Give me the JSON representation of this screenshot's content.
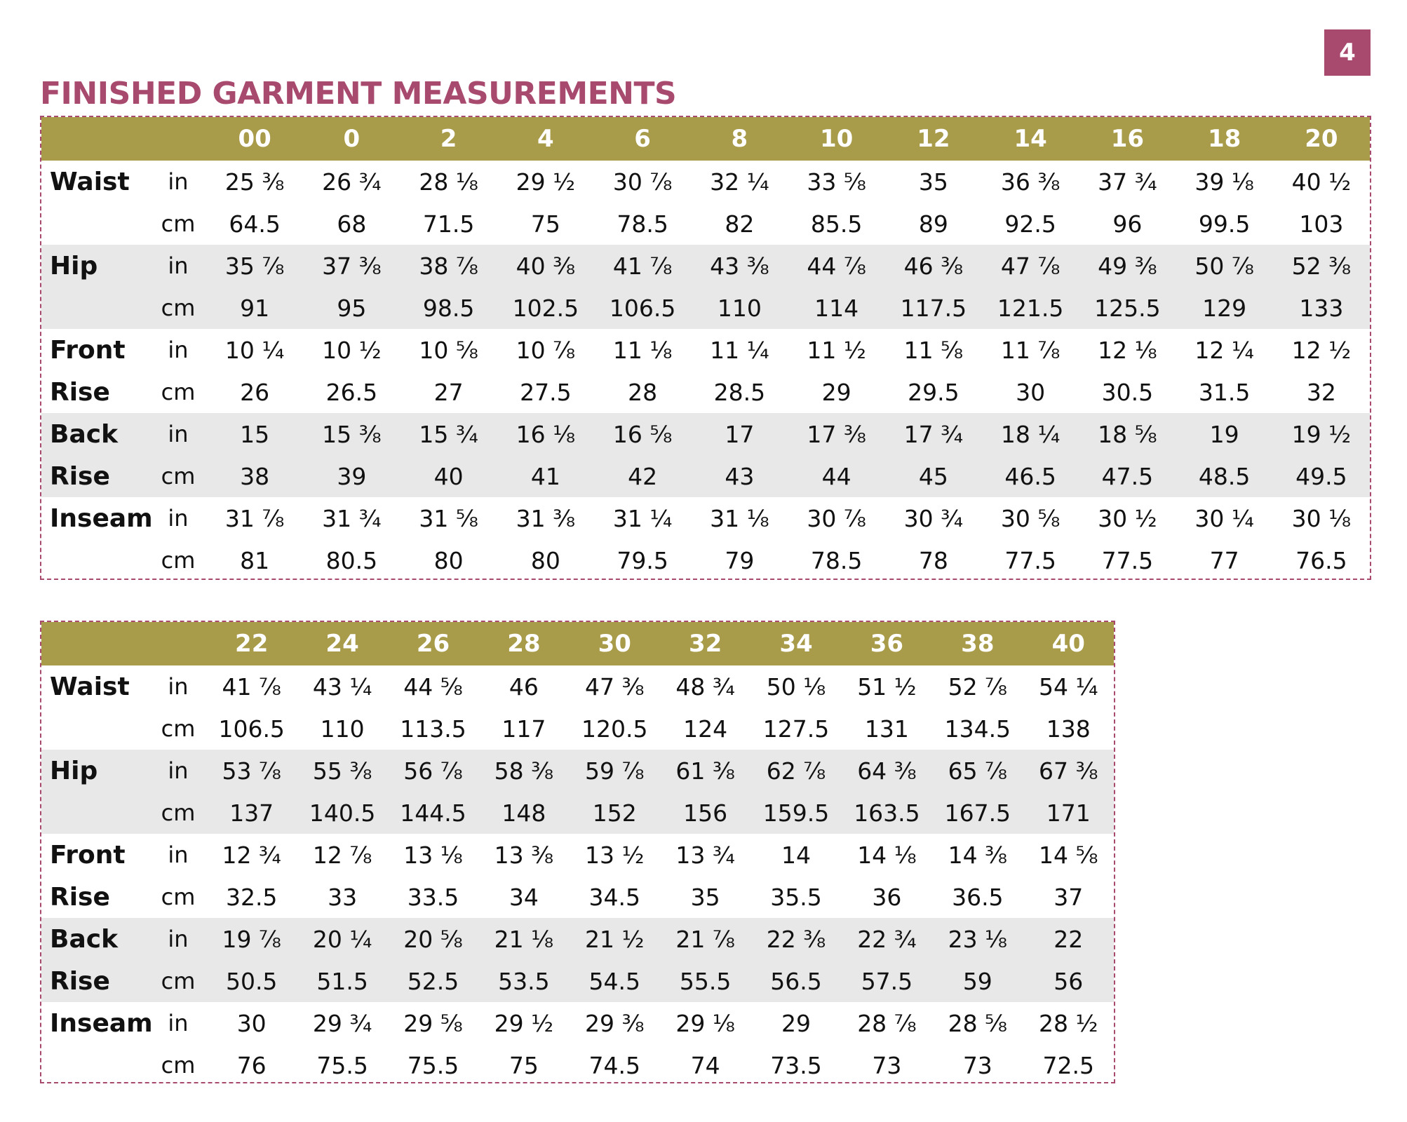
{
  "page_number": "4",
  "title": "FINISHED GARMENT MEASUREMENTS",
  "colors": {
    "accent": "#a84a6e",
    "header_bg": "#a89b4a",
    "row_shade": "#e8e8e8"
  },
  "tables": [
    {
      "sizes": [
        "00",
        "0",
        "2",
        "4",
        "6",
        "8",
        "10",
        "12",
        "14",
        "16",
        "18",
        "20"
      ],
      "rows": [
        {
          "label": "Waist",
          "unit": "in",
          "values": [
            "25 ⅜",
            "26 ¾",
            "28 ⅛",
            "29 ½",
            "30 ⅞",
            "32 ¼",
            "33 ⅝",
            "35",
            "36 ⅜",
            "37 ¾",
            "39 ⅛",
            "40 ½"
          ]
        },
        {
          "label": "",
          "unit": "cm",
          "values": [
            "64.5",
            "68",
            "71.5",
            "75",
            "78.5",
            "82",
            "85.5",
            "89",
            "92.5",
            "96",
            "99.5",
            "103"
          ]
        },
        {
          "label": "Hip",
          "unit": "in",
          "values": [
            "35 ⅞",
            "37 ⅜",
            "38 ⅞",
            "40 ⅜",
            "41 ⅞",
            "43 ⅜",
            "44 ⅞",
            "46 ⅜",
            "47 ⅞",
            "49 ⅜",
            "50 ⅞",
            "52 ⅜"
          ]
        },
        {
          "label": "",
          "unit": "cm",
          "values": [
            "91",
            "95",
            "98.5",
            "102.5",
            "106.5",
            "110",
            "114",
            "117.5",
            "121.5",
            "125.5",
            "129",
            "133"
          ]
        },
        {
          "label": "Front",
          "unit": "in",
          "values": [
            "10 ¼",
            "10 ½",
            "10 ⅝",
            "10 ⅞",
            "11 ⅛",
            "11 ¼",
            "11 ½",
            "11 ⅝",
            "11 ⅞",
            "12 ⅛",
            "12 ¼",
            "12 ½"
          ]
        },
        {
          "label": "Rise",
          "unit": "cm",
          "values": [
            "26",
            "26.5",
            "27",
            "27.5",
            "28",
            "28.5",
            "29",
            "29.5",
            "30",
            "30.5",
            "31.5",
            "32"
          ]
        },
        {
          "label": "Back",
          "unit": "in",
          "values": [
            "15",
            "15 ⅜",
            "15 ¾",
            "16 ⅛",
            "16 ⅝",
            "17",
            "17 ⅜",
            "17 ¾",
            "18 ¼",
            "18 ⅝",
            "19",
            "19 ½"
          ]
        },
        {
          "label": "Rise",
          "unit": "cm",
          "values": [
            "38",
            "39",
            "40",
            "41",
            "42",
            "43",
            "44",
            "45",
            "46.5",
            "47.5",
            "48.5",
            "49.5"
          ]
        },
        {
          "label": "Inseam",
          "unit": "in",
          "values": [
            "31 ⅞",
            "31 ¾",
            "31 ⅝",
            "31 ⅜",
            "31 ¼",
            "31 ⅛",
            "30 ⅞",
            "30 ¾",
            "30 ⅝",
            "30 ½",
            "30 ¼",
            "30 ⅛"
          ]
        },
        {
          "label": "",
          "unit": "cm",
          "values": [
            "81",
            "80.5",
            "80",
            "80",
            "79.5",
            "79",
            "78.5",
            "78",
            "77.5",
            "77.5",
            "77",
            "76.5"
          ]
        }
      ]
    },
    {
      "sizes": [
        "22",
        "24",
        "26",
        "28",
        "30",
        "32",
        "34",
        "36",
        "38",
        "40"
      ],
      "rows": [
        {
          "label": "Waist",
          "unit": "in",
          "values": [
            "41 ⅞",
            "43 ¼",
            "44 ⅝",
            "46",
            "47 ⅜",
            "48 ¾",
            "50 ⅛",
            "51 ½",
            "52 ⅞",
            "54 ¼"
          ]
        },
        {
          "label": "",
          "unit": "cm",
          "values": [
            "106.5",
            "110",
            "113.5",
            "117",
            "120.5",
            "124",
            "127.5",
            "131",
            "134.5",
            "138"
          ]
        },
        {
          "label": "Hip",
          "unit": "in",
          "values": [
            "53 ⅞",
            "55 ⅜",
            "56 ⅞",
            "58 ⅜",
            "59 ⅞",
            "61 ⅜",
            "62 ⅞",
            "64 ⅜",
            "65 ⅞",
            "67 ⅜"
          ]
        },
        {
          "label": "",
          "unit": "cm",
          "values": [
            "137",
            "140.5",
            "144.5",
            "148",
            "152",
            "156",
            "159.5",
            "163.5",
            "167.5",
            "171"
          ]
        },
        {
          "label": "Front",
          "unit": "in",
          "values": [
            "12 ¾",
            "12 ⅞",
            "13 ⅛",
            "13 ⅜",
            "13 ½",
            "13 ¾",
            "14",
            "14 ⅛",
            "14 ⅜",
            "14 ⅝"
          ]
        },
        {
          "label": "Rise",
          "unit": "cm",
          "values": [
            "32.5",
            "33",
            "33.5",
            "34",
            "34.5",
            "35",
            "35.5",
            "36",
            "36.5",
            "37"
          ]
        },
        {
          "label": "Back",
          "unit": "in",
          "values": [
            "19 ⅞",
            "20 ¼",
            "20 ⅝",
            "21 ⅛",
            "21 ½",
            "21 ⅞",
            "22 ⅜",
            "22 ¾",
            "23 ⅛",
            "22"
          ]
        },
        {
          "label": "Rise",
          "unit": "cm",
          "values": [
            "50.5",
            "51.5",
            "52.5",
            "53.5",
            "54.5",
            "55.5",
            "56.5",
            "57.5",
            "59",
            "56"
          ]
        },
        {
          "label": "Inseam",
          "unit": "in",
          "values": [
            "30",
            "29 ¾",
            "29 ⅝",
            "29 ½",
            "29 ⅜",
            "29 ⅛",
            "29",
            "28 ⅞",
            "28 ⅝",
            "28 ½"
          ]
        },
        {
          "label": "",
          "unit": "cm",
          "values": [
            "76",
            "75.5",
            "75.5",
            "75",
            "74.5",
            "74",
            "73.5",
            "73",
            "73",
            "72.5"
          ]
        }
      ]
    }
  ]
}
